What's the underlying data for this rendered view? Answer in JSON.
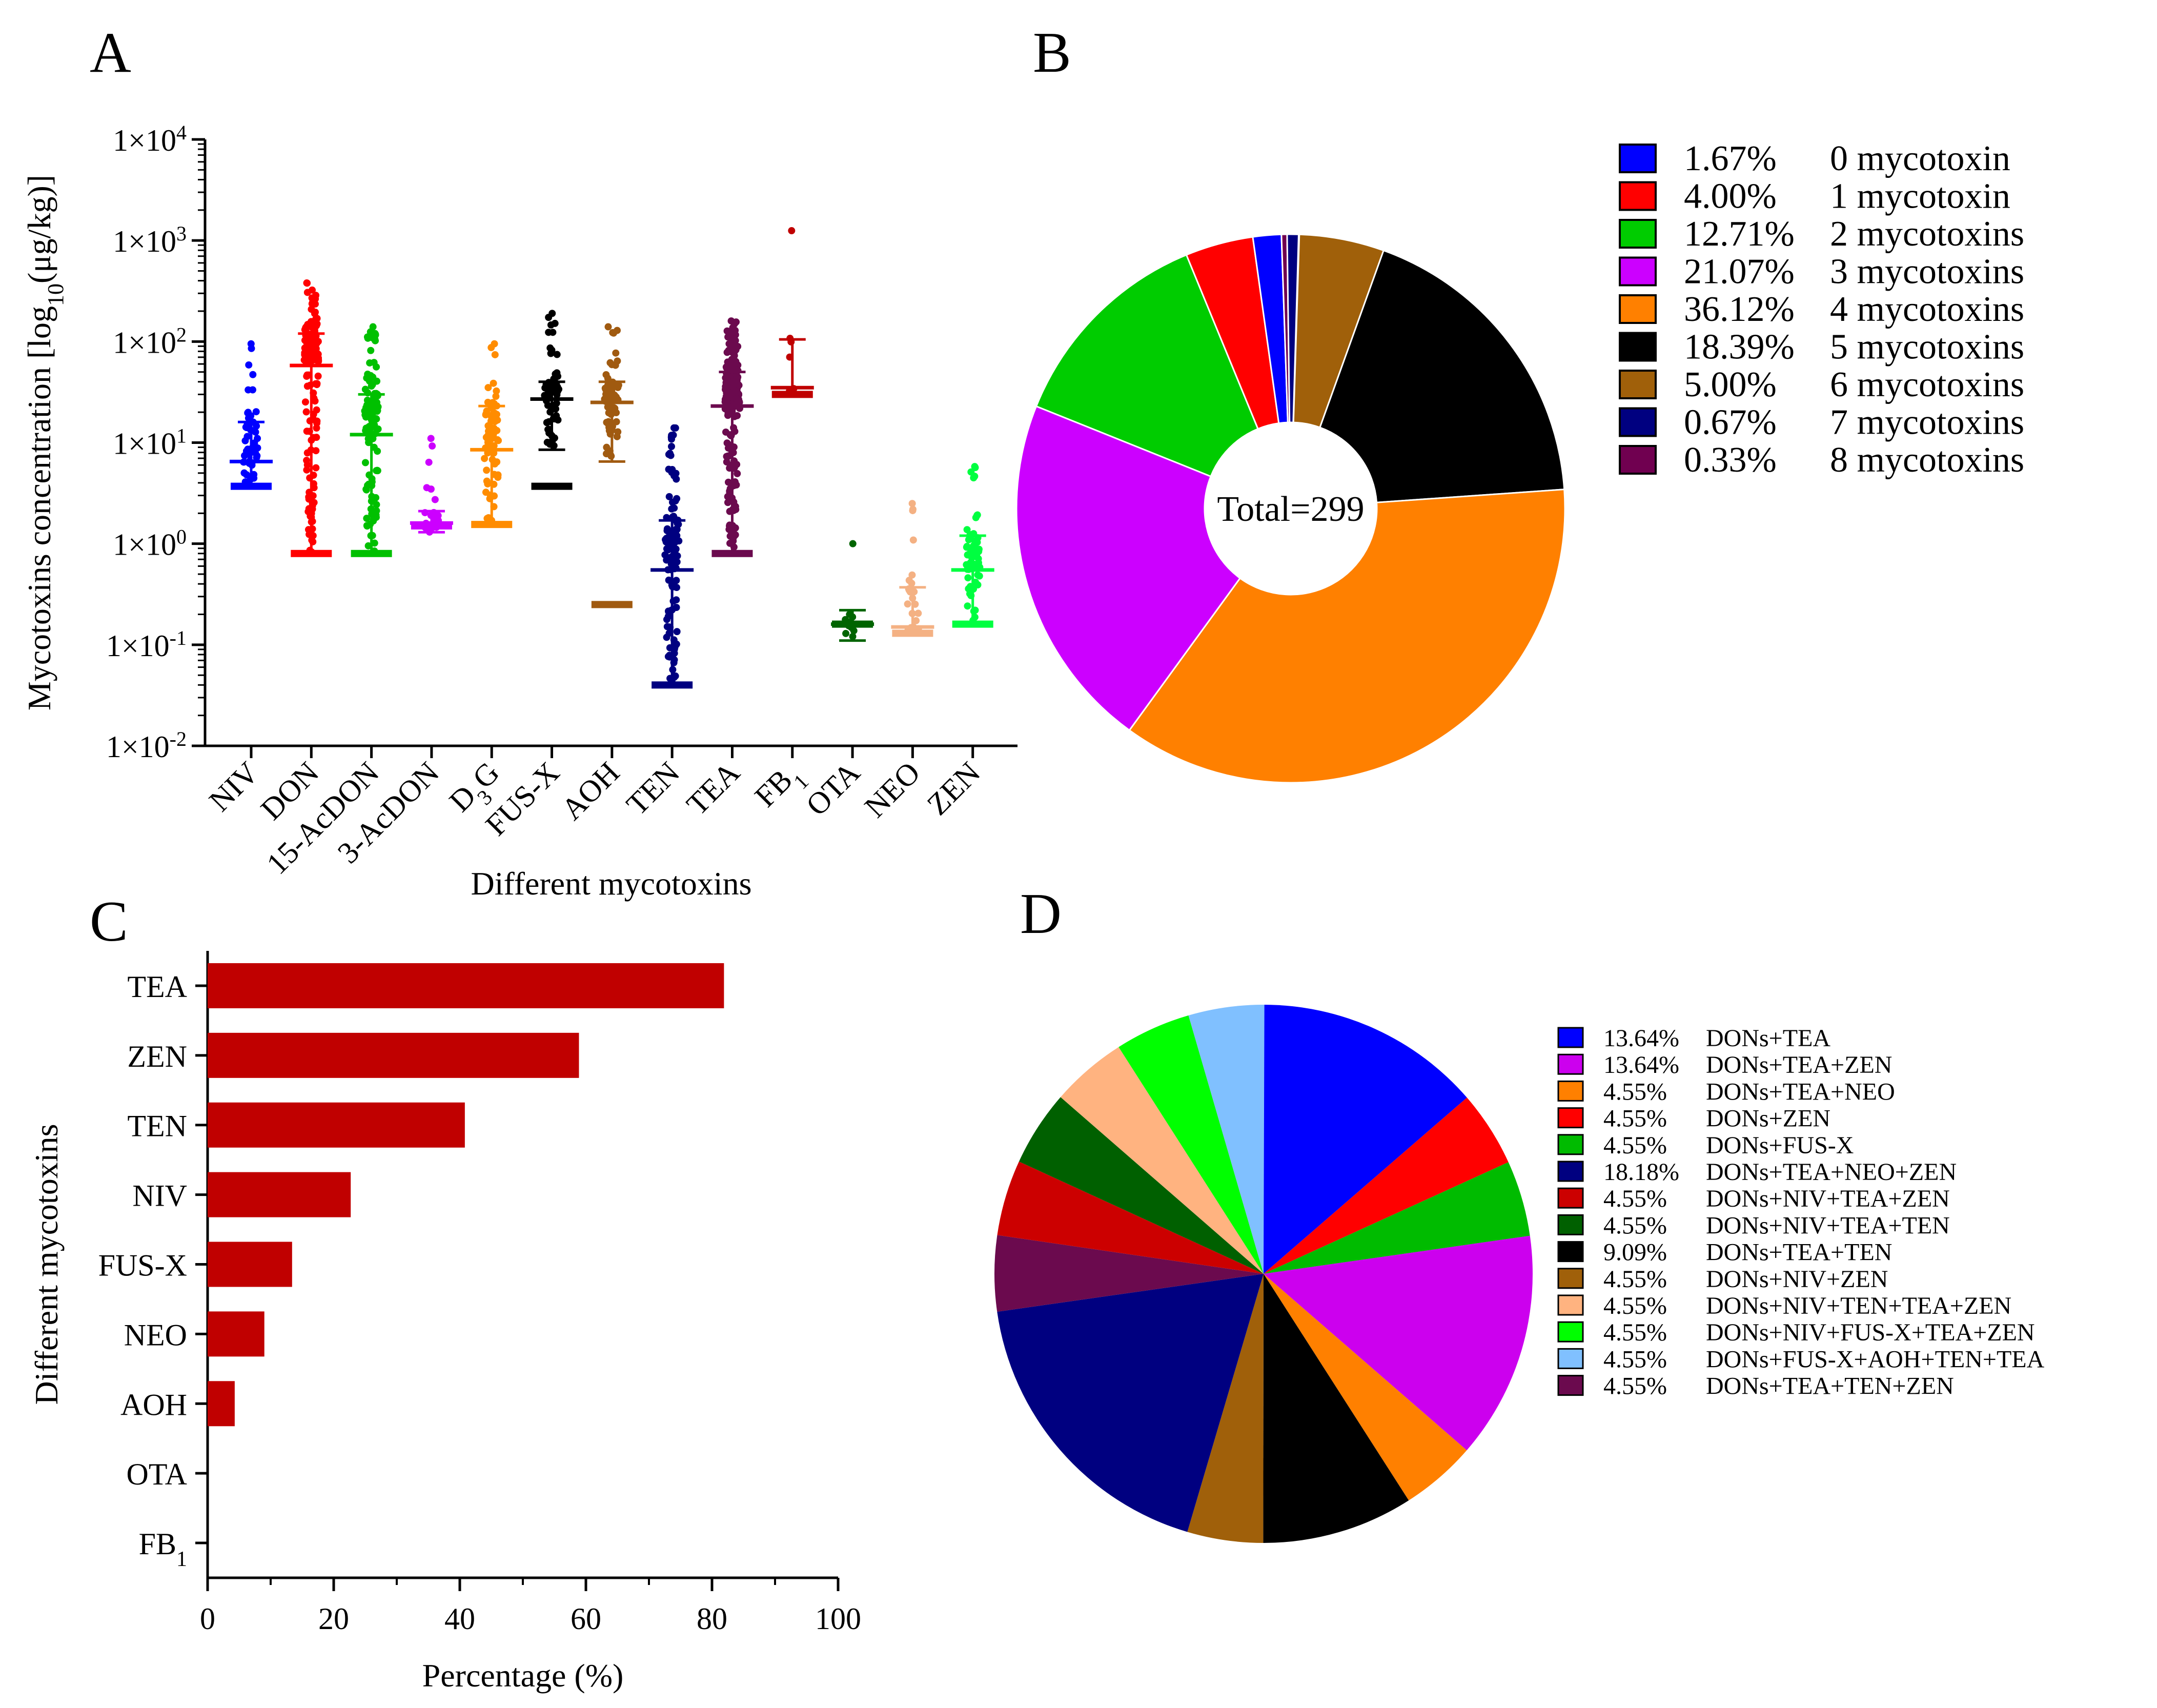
{
  "chart_data": [
    {
      "id": "A",
      "panel_label": "A",
      "type": "scatter",
      "subtype": "dot-plot with median and interquartile range, log y axis",
      "ylabel": "Mycotoxins concentration [log10(μg/kg)]",
      "ylabel_parts": {
        "main": "Mycotoxins concentration [log",
        "sub": "10",
        "rest": "(μg/kg)]"
      },
      "xlabel": "Different mycotoxins",
      "yscale": "log",
      "ylim": [
        0.01,
        10000
      ],
      "yticks": [
        {
          "value": 0.01,
          "mantissa": "1×10",
          "exp": "-2"
        },
        {
          "value": 0.1,
          "mantissa": "1×10",
          "exp": "-1"
        },
        {
          "value": 1,
          "mantissa": "1×10",
          "exp": "0"
        },
        {
          "value": 10,
          "mantissa": "1×10",
          "exp": "1"
        },
        {
          "value": 100,
          "mantissa": "1×10",
          "exp": "2"
        },
        {
          "value": 1000,
          "mantissa": "1×10",
          "exp": "3"
        },
        {
          "value": 10000,
          "mantissa": "1×10",
          "exp": "4"
        }
      ],
      "categories": [
        {
          "label": "NIV",
          "color": "#0000ff",
          "min": 3.7,
          "max": 95,
          "median": 6.5,
          "q1": 3.7,
          "q3": 16,
          "lod": 3.7,
          "n": 45
        },
        {
          "label": "DON",
          "color": "#ff0000",
          "min": 0.8,
          "max": 380,
          "median": 58,
          "q1": 0.8,
          "q3": 120,
          "lod": 0.8,
          "n": 160
        },
        {
          "label": "15-AcDON",
          "color": "#00c000",
          "min": 0.8,
          "max": 140,
          "median": 12,
          "q1": 0.8,
          "q3": 30,
          "lod": 0.8,
          "n": 110
        },
        {
          "label": "3-AcDON",
          "color": "#cc00ff",
          "min": 0.95,
          "max": 11,
          "median": 1.6,
          "q1": 1.3,
          "q3": 2.1,
          "lod": 1.5,
          "n": 25
        },
        {
          "label": "D3G",
          "label_main": "D",
          "label_sub": "3",
          "label_rest": "G",
          "color": "#ff8c00",
          "min": 1.55,
          "max": 95,
          "median": 8.5,
          "q1": 1.55,
          "q3": 23,
          "lod": 1.55,
          "n": 70
        },
        {
          "label": "FUS-X",
          "color": "#000000",
          "min": 3.7,
          "max": 190,
          "median": 27,
          "q1": 8.5,
          "q3": 40,
          "lod": 3.7,
          "n": 70
        },
        {
          "label": "AOH",
          "color": "#a05a10",
          "min": 0.25,
          "max": 140,
          "median": 25,
          "q1": 6.5,
          "q3": 40,
          "lod": 0.25,
          "n": 70
        },
        {
          "label": "TEN",
          "color": "#000080",
          "min": 0.04,
          "max": 14,
          "median": 0.55,
          "q1": 0.04,
          "q3": 1.7,
          "lod": 0.04,
          "n": 120
        },
        {
          "label": "TEA",
          "color": "#6b0a4e",
          "min": 0.8,
          "max": 160,
          "median": 23,
          "q1": 0.8,
          "q3": 50,
          "lod": 0.8,
          "n": 230
        },
        {
          "label": "FB1",
          "label_main": "FB",
          "label_sub": "1",
          "label_rest": "",
          "color": "#c00000",
          "min": 30,
          "max": 1250,
          "median": 35,
          "q1": 30,
          "q3": 105,
          "lod": 30,
          "n": 6
        },
        {
          "label": "OTA",
          "color": "#006400",
          "min": 0.11,
          "max": 1.0,
          "median": 0.16,
          "q1": 0.11,
          "q3": 0.22,
          "lod": 0.16,
          "n": 10
        },
        {
          "label": "NEO",
          "color": "#f4b183",
          "min": 0.13,
          "max": 2.5,
          "median": 0.15,
          "q1": 0.13,
          "q3": 0.37,
          "lod": 0.13,
          "n": 25
        },
        {
          "label": "ZEN",
          "color": "#00ff40",
          "min": 0.16,
          "max": 5.8,
          "median": 0.55,
          "q1": 0.16,
          "q3": 1.2,
          "lod": 0.16,
          "n": 60
        }
      ]
    },
    {
      "id": "B",
      "panel_label": "B",
      "type": "pie",
      "subtype": "donut",
      "center_label": "Total=299",
      "slices": [
        {
          "percent": 1.67,
          "percent_label": "1.67%",
          "name": "0 mycotoxin",
          "color": "#0000ff"
        },
        {
          "percent": 4.0,
          "percent_label": "4.00%",
          "name": "1 mycotoxin",
          "color": "#ff0000"
        },
        {
          "percent": 12.71,
          "percent_label": "12.71%",
          "name": "2 mycotoxins",
          "color": "#00cc00"
        },
        {
          "percent": 21.07,
          "percent_label": "21.07%",
          "name": "3 mycotoxins",
          "color": "#cc00ff"
        },
        {
          "percent": 36.12,
          "percent_label": "36.12%",
          "name": "4 mycotoxins",
          "color": "#ff8000"
        },
        {
          "percent": 18.39,
          "percent_label": "18.39%",
          "name": "5 mycotoxins",
          "color": "#000000"
        },
        {
          "percent": 5.0,
          "percent_label": "5.00%",
          "name": "6 mycotoxins",
          "color": "#a0600a"
        },
        {
          "percent": 0.67,
          "percent_label": "0.67%",
          "name": "7 mycotoxins",
          "color": "#000080"
        },
        {
          "percent": 0.33,
          "percent_label": "0.33%",
          "name": "8 mycotoxins",
          "color": "#700050"
        }
      ],
      "legend_position": "right"
    },
    {
      "id": "C",
      "panel_label": "C",
      "type": "bar",
      "orientation": "horizontal",
      "color": "#c00000",
      "xlabel": "Percentage (%)",
      "ylabel": "Different mycotoxins",
      "xlim": [
        0,
        100
      ],
      "xticks": [
        "0",
        "20",
        "40",
        "60",
        "80",
        "100"
      ],
      "categories": [
        {
          "label": "TEA",
          "label_main": "TEA",
          "label_sub": "",
          "value": 81.9
        },
        {
          "label": "ZEN",
          "label_main": "ZEN",
          "label_sub": "",
          "value": 58.9
        },
        {
          "label": "TEN",
          "label_main": "TEN",
          "label_sub": "",
          "value": 40.8
        },
        {
          "label": "NIV",
          "label_main": "NIV",
          "label_sub": "",
          "value": 22.7
        },
        {
          "label": "FUS-X",
          "label_main": "FUS-X",
          "label_sub": "",
          "value": 13.4
        },
        {
          "label": "NEO",
          "label_main": "NEO",
          "label_sub": "",
          "value": 9.0
        },
        {
          "label": "AOH",
          "label_main": "AOH",
          "label_sub": "",
          "value": 4.3
        },
        {
          "label": "OTA",
          "label_main": "OTA",
          "label_sub": "",
          "value": 0
        },
        {
          "label": "FB1",
          "label_main": "FB",
          "label_sub": "1",
          "value": 0
        }
      ]
    },
    {
      "id": "D",
      "panel_label": "D",
      "type": "pie",
      "slices": [
        {
          "percent": 13.64,
          "percent_label": "13.64%",
          "name": "DONs+TEA",
          "color": "#0000ff"
        },
        {
          "percent": 4.55,
          "percent_label": "4.55%",
          "name": "DONs+ZEN",
          "color": "#ff0000"
        },
        {
          "percent": 4.55,
          "percent_label": "4.55%",
          "name": "DONs+FUS-X",
          "color": "#00bb00"
        },
        {
          "percent": 13.64,
          "percent_label": "13.64%",
          "name": "DONs+TEA+ZEN",
          "color": "#cc00ee"
        },
        {
          "percent": 4.55,
          "percent_label": "4.55%",
          "name": "DONs+TEA+NEO",
          "color": "#ff8000"
        },
        {
          "percent": 9.09,
          "percent_label": "9.09%",
          "name": "DONs+TEA+TEN",
          "color": "#000000"
        },
        {
          "percent": 4.55,
          "percent_label": "4.55%",
          "name": "DONs+NIV+ZEN",
          "color": "#a0600a"
        },
        {
          "percent": 18.18,
          "percent_label": "18.18%",
          "name": "DONs+TEA+NEO+ZEN",
          "color": "#000080"
        },
        {
          "percent": 4.55,
          "percent_label": "4.55%",
          "name": "DONs+TEA+TEN+ZEN",
          "color": "#6b0a4e"
        },
        {
          "percent": 4.55,
          "percent_label": "4.55%",
          "name": "DONs+NIV+TEA+ZEN",
          "color": "#cc0000"
        },
        {
          "percent": 4.55,
          "percent_label": "4.55%",
          "name": "DONs+NIV+TEA+TEN",
          "color": "#006000"
        },
        {
          "percent": 4.55,
          "percent_label": "4.55%",
          "name": "DONs+NIV+TEN+TEA+ZEN",
          "color": "#ffb380"
        },
        {
          "percent": 4.55,
          "percent_label": "4.55%",
          "name": "DONs+NIV+FUS-X+TEA+ZEN",
          "color": "#00ff00"
        },
        {
          "percent": 4.55,
          "percent_label": "4.55%",
          "name": "DONs+FUS-X+AOH+TEN+TEA",
          "color": "#80c0ff"
        }
      ],
      "legend": [
        {
          "percent_label": "13.64%",
          "name": "DONs+TEA",
          "color": "#0000ff"
        },
        {
          "percent_label": "13.64%",
          "name": "DONs+TEA+ZEN",
          "color": "#cc00ee"
        },
        {
          "percent_label": "4.55%",
          "name": "DONs+TEA+NEO",
          "color": "#ff8000"
        },
        {
          "percent_label": "4.55%",
          "name": "DONs+ZEN",
          "color": "#ff0000"
        },
        {
          "percent_label": "4.55%",
          "name": "DONs+FUS-X",
          "color": "#00bb00"
        },
        {
          "percent_label": "18.18%",
          "name": "DONs+TEA+NEO+ZEN",
          "color": "#000080"
        },
        {
          "percent_label": "4.55%",
          "name": "DONs+NIV+TEA+ZEN",
          "color": "#cc0000"
        },
        {
          "percent_label": "4.55%",
          "name": "DONs+NIV+TEA+TEN",
          "color": "#006000"
        },
        {
          "percent_label": "9.09%",
          "name": "DONs+TEA+TEN",
          "color": "#000000"
        },
        {
          "percent_label": "4.55%",
          "name": "DONs+NIV+ZEN",
          "color": "#a0600a"
        },
        {
          "percent_label": "4.55%",
          "name": "DONs+NIV+TEN+TEA+ZEN",
          "color": "#ffb380"
        },
        {
          "percent_label": "4.55%",
          "name": "DONs+NIV+FUS-X+TEA+ZEN",
          "color": "#00ff00"
        },
        {
          "percent_label": "4.55%",
          "name": "DONs+FUS-X+AOH+TEN+TEA",
          "color": "#80c0ff"
        },
        {
          "percent_label": "4.55%",
          "name": "DONs+TEA+TEN+ZEN",
          "color": "#6b0a4e"
        }
      ],
      "legend_position": "right"
    }
  ]
}
